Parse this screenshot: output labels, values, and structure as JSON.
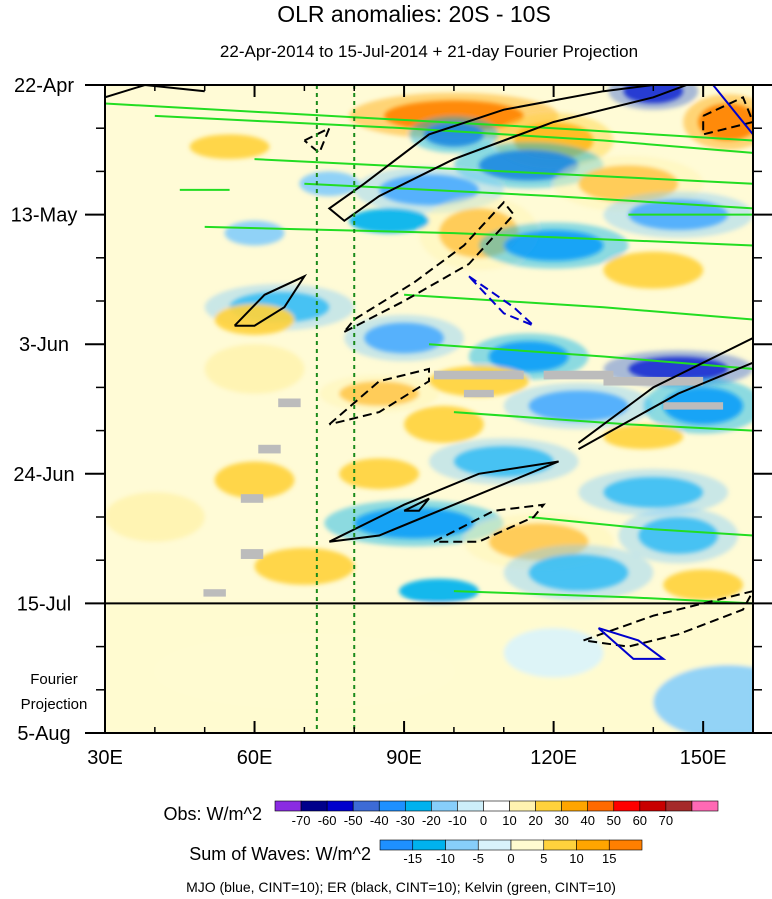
{
  "chart_data": {
    "type": "heatmap",
    "title": "OLR anomalies: 20S - 10S",
    "subtitle": "22-Apr-2014 to 15-Jul-2014 + 21-day Fourier Projection",
    "x_axis": {
      "ticks": [
        30,
        60,
        90,
        120,
        150
      ],
      "tick_labels": [
        "30E",
        "60E",
        "90E",
        "120E",
        "150E"
      ],
      "range": [
        30,
        160
      ]
    },
    "y_axis": {
      "ticks": [
        0,
        21,
        42,
        63,
        84,
        105
      ],
      "tick_labels": [
        "22-Apr",
        "13-May",
        "3-Jun",
        "24-Jun",
        "15-Jul",
        "5-Aug"
      ],
      "range_days": [
        0,
        105
      ],
      "direction": "time increases downward"
    },
    "observation_end_day": 84,
    "projection_label_line1": "Fourier",
    "projection_label_line2": "Projection",
    "reference_longitudes": [
      72.5,
      80
    ],
    "obs_colorbar": {
      "label": "Obs: W/m^2",
      "levels": [
        -70,
        -60,
        -50,
        -40,
        -30,
        -20,
        -10,
        0,
        10,
        20,
        30,
        40,
        50,
        60,
        70
      ],
      "colors": [
        "#8a2be2",
        "#00008b",
        "#0000cd",
        "#3d6bd6",
        "#1e90ff",
        "#00b2ee",
        "#87cefa",
        "#cdeef9",
        "#ffffff",
        "#fff3b0",
        "#ffd23c",
        "#ffa500",
        "#ff6a00",
        "#ff0000",
        "#c80000",
        "#a52a2a",
        "#ff69b4"
      ]
    },
    "waves_colorbar": {
      "label": "Sum of Waves: W/m^2",
      "levels": [
        -15,
        -10,
        -5,
        0,
        5,
        10,
        15
      ],
      "colors": [
        "#1e90ff",
        "#00b2ee",
        "#87cefa",
        "#d9f3fb",
        "#fffbd0",
        "#ffd23c",
        "#ffa500",
        "#ff7f00"
      ]
    },
    "contours": {
      "mjo": {
        "name": "MJO",
        "color": "#0000cd",
        "cint": 10
      },
      "er": {
        "name": "ER",
        "color": "#000000",
        "cint": 10
      },
      "kelvin": {
        "name": "Kelvin",
        "color": "#22dd22",
        "cint": 10
      }
    },
    "legend_text": "MJO (blue, CINT=10); ER (black, CINT=10); Kelvin (green, CINT=10)",
    "anomaly_blobs": [
      {
        "lon": 100,
        "day": 5,
        "rx": 14,
        "ry": 2.5,
        "v": 45
      },
      {
        "lon": 140,
        "day": 1,
        "rx": 6,
        "ry": 2,
        "v": -60
      },
      {
        "lon": 155,
        "day": 6,
        "rx": 6,
        "ry": 3,
        "v": 45
      },
      {
        "lon": 120,
        "day": 9,
        "rx": 8,
        "ry": 3,
        "v": 35
      },
      {
        "lon": 100,
        "day": 8,
        "rx": 6,
        "ry": 2,
        "v": -45
      },
      {
        "lon": 115,
        "day": 13,
        "rx": 10,
        "ry": 2.5,
        "v": -45
      },
      {
        "lon": 95,
        "day": 17,
        "rx": 10,
        "ry": 2.5,
        "v": -35
      },
      {
        "lon": 135,
        "day": 16,
        "rx": 10,
        "ry": 3,
        "v": 30
      },
      {
        "lon": 55,
        "day": 10,
        "rx": 8,
        "ry": 2,
        "v": 25
      },
      {
        "lon": 75,
        "day": 16,
        "rx": 6,
        "ry": 2,
        "v": -20
      },
      {
        "lon": 145,
        "day": 21,
        "rx": 10,
        "ry": 2.5,
        "v": -35
      },
      {
        "lon": 105,
        "day": 24,
        "rx": 8,
        "ry": 4,
        "v": 30
      },
      {
        "lon": 120,
        "day": 26,
        "rx": 10,
        "ry": 2.5,
        "v": -40
      },
      {
        "lon": 87,
        "day": 22,
        "rx": 8,
        "ry": 2,
        "v": -25
      },
      {
        "lon": 60,
        "day": 24,
        "rx": 6,
        "ry": 2,
        "v": -20
      },
      {
        "lon": 140,
        "day": 30,
        "rx": 10,
        "ry": 3,
        "v": 20
      },
      {
        "lon": 65,
        "day": 36,
        "rx": 10,
        "ry": 2.5,
        "v": -30
      },
      {
        "lon": 60,
        "day": 38,
        "rx": 8,
        "ry": 2.5,
        "v": 25
      },
      {
        "lon": 90,
        "day": 41,
        "rx": 8,
        "ry": 2.5,
        "v": -35
      },
      {
        "lon": 115,
        "day": 44,
        "rx": 8,
        "ry": 2.5,
        "v": -40
      },
      {
        "lon": 145,
        "day": 46,
        "rx": 10,
        "ry": 2,
        "v": -60
      },
      {
        "lon": 105,
        "day": 48,
        "rx": 10,
        "ry": 2.5,
        "v": 25
      },
      {
        "lon": 60,
        "day": 46,
        "rx": 10,
        "ry": 4,
        "v": 15
      },
      {
        "lon": 85,
        "day": 50,
        "rx": 8,
        "ry": 2,
        "v": 30
      },
      {
        "lon": 125,
        "day": 52,
        "rx": 10,
        "ry": 2.5,
        "v": -35
      },
      {
        "lon": 150,
        "day": 52,
        "rx": 8,
        "ry": 3,
        "v": -40
      },
      {
        "lon": 98,
        "day": 55,
        "rx": 8,
        "ry": 3,
        "v": 20
      },
      {
        "lon": 138,
        "day": 57,
        "rx": 8,
        "ry": 2,
        "v": 25
      },
      {
        "lon": 110,
        "day": 61,
        "rx": 10,
        "ry": 2.5,
        "v": -30
      },
      {
        "lon": 85,
        "day": 63,
        "rx": 8,
        "ry": 2.5,
        "v": 25
      },
      {
        "lon": 60,
        "day": 64,
        "rx": 8,
        "ry": 3,
        "v": 20
      },
      {
        "lon": 140,
        "day": 66,
        "rx": 10,
        "ry": 2.5,
        "v": -30
      },
      {
        "lon": 92,
        "day": 71,
        "rx": 12,
        "ry": 2.5,
        "v": -40
      },
      {
        "lon": 117,
        "day": 74,
        "rx": 10,
        "ry": 3,
        "v": 30
      },
      {
        "lon": 145,
        "day": 73,
        "rx": 8,
        "ry": 3,
        "v": -30
      },
      {
        "lon": 125,
        "day": 79,
        "rx": 10,
        "ry": 3,
        "v": -30
      },
      {
        "lon": 70,
        "day": 78,
        "rx": 10,
        "ry": 3,
        "v": 20
      },
      {
        "lon": 150,
        "day": 81,
        "rx": 8,
        "ry": 2.5,
        "v": 25
      },
      {
        "lon": 40,
        "day": 70,
        "rx": 10,
        "ry": 4,
        "v": 15
      },
      {
        "lon": 97,
        "day": 82,
        "rx": 8,
        "ry": 2,
        "v": -25
      }
    ],
    "projection_fields": [
      {
        "lon": 155,
        "day": 100,
        "rx": 15,
        "ry": 6,
        "v": -8
      },
      {
        "lon": 120,
        "day": 92,
        "rx": 10,
        "ry": 4,
        "v": -4
      },
      {
        "lon": 70,
        "day": 95,
        "rx": 30,
        "ry": 6,
        "v": 3
      }
    ],
    "missing_data": [
      {
        "lon": 105,
        "day": 47,
        "w": 18,
        "h": 1.4
      },
      {
        "lon": 125,
        "day": 47,
        "w": 14,
        "h": 1.4
      },
      {
        "lon": 140,
        "day": 48,
        "w": 20,
        "h": 1.4
      },
      {
        "lon": 148,
        "day": 52,
        "w": 12,
        "h": 1.2
      },
      {
        "lon": 105,
        "day": 50,
        "w": 6,
        "h": 1.2
      },
      {
        "lon": 67,
        "day": 51.5,
        "w": 4.5,
        "h": 1.4
      },
      {
        "lon": 63,
        "day": 59,
        "w": 4.5,
        "h": 1.4
      },
      {
        "lon": 59.5,
        "day": 67,
        "w": 4.5,
        "h": 1.4
      },
      {
        "lon": 59.5,
        "day": 76,
        "w": 4.5,
        "h": 1.6
      },
      {
        "lon": 52,
        "day": 82.3,
        "w": 4.5,
        "h": 1.2
      }
    ],
    "er_contours": [
      {
        "dashed": false,
        "points": [
          [
            30,
            2
          ],
          [
            38,
            0
          ],
          [
            50,
            1
          ]
        ]
      },
      {
        "dashed": false,
        "points": [
          [
            82,
            16
          ],
          [
            95,
            8
          ],
          [
            110,
            4
          ],
          [
            130,
            1
          ],
          [
            150,
            -1
          ],
          [
            140,
            2
          ],
          [
            120,
            6
          ],
          [
            100,
            12
          ],
          [
            85,
            18
          ],
          [
            78,
            22
          ],
          [
            75,
            20
          ],
          [
            82,
            16
          ]
        ]
      },
      {
        "dashed": true,
        "points": [
          [
            70,
            9
          ],
          [
            75,
            7
          ],
          [
            73,
            11
          ],
          [
            70,
            9
          ]
        ]
      },
      {
        "dashed": true,
        "points": [
          [
            150,
            5
          ],
          [
            158,
            2
          ],
          [
            160,
            6
          ],
          [
            150,
            8
          ],
          [
            150,
            5
          ]
        ]
      },
      {
        "dashed": false,
        "points": [
          [
            56,
            39
          ],
          [
            62,
            34
          ],
          [
            70,
            31
          ],
          [
            66,
            36
          ],
          [
            60,
            39
          ],
          [
            56,
            39
          ]
        ]
      },
      {
        "dashed": true,
        "points": [
          [
            78,
            40
          ],
          [
            90,
            35
          ],
          [
            103,
            29
          ],
          [
            112,
            21
          ],
          [
            110,
            19
          ],
          [
            102,
            26
          ],
          [
            92,
            32
          ],
          [
            80,
            38
          ],
          [
            78,
            40
          ]
        ]
      },
      {
        "dashed": true,
        "points": [
          [
            75,
            55
          ],
          [
            85,
            48
          ],
          [
            95,
            46
          ],
          [
            95,
            48
          ],
          [
            85,
            53
          ],
          [
            75,
            55
          ]
        ]
      },
      {
        "dashed": false,
        "points": [
          [
            125,
            58
          ],
          [
            140,
            49
          ],
          [
            160,
            41
          ]
        ]
      },
      {
        "dashed": false,
        "points": [
          [
            125,
            59
          ],
          [
            145,
            50
          ],
          [
            160,
            45
          ]
        ]
      },
      {
        "dashed": false,
        "points": [
          [
            75,
            74
          ],
          [
            90,
            68
          ],
          [
            105,
            63
          ],
          [
            121,
            61
          ],
          [
            118,
            62
          ],
          [
            100,
            68
          ],
          [
            85,
            73
          ],
          [
            75,
            74
          ]
        ]
      },
      {
        "dashed": false,
        "points": [
          [
            90,
            69
          ],
          [
            95,
            67
          ],
          [
            93,
            69
          ],
          [
            90,
            69
          ]
        ]
      },
      {
        "dashed": true,
        "points": [
          [
            96,
            74
          ],
          [
            108,
            69
          ],
          [
            118,
            68
          ],
          [
            116,
            70
          ],
          [
            105,
            74
          ],
          [
            96,
            74
          ]
        ]
      },
      {
        "dashed": true,
        "points": [
          [
            126,
            90
          ],
          [
            140,
            86
          ],
          [
            160,
            82
          ],
          [
            158,
            85
          ],
          [
            145,
            89
          ],
          [
            135,
            91
          ],
          [
            126,
            90
          ]
        ]
      }
    ],
    "mjo_contours": [
      {
        "dashed": true,
        "points": [
          [
            103,
            31
          ],
          [
            112,
            36
          ],
          [
            116,
            39
          ],
          [
            110,
            37
          ],
          [
            103,
            31
          ]
        ]
      },
      {
        "dashed": false,
        "points": [
          [
            129,
            88
          ],
          [
            137,
            90
          ],
          [
            142,
            93
          ],
          [
            136,
            93
          ],
          [
            129,
            88
          ]
        ]
      },
      {
        "dashed": false,
        "points": [
          [
            152,
            0
          ],
          [
            160,
            8
          ]
        ]
      }
    ],
    "kelvin_contours": [
      {
        "points": [
          [
            30,
            3
          ],
          [
            75,
            5
          ],
          [
            120,
            7
          ],
          [
            160,
            9
          ]
        ]
      },
      {
        "points": [
          [
            40,
            5
          ],
          [
            90,
            7
          ],
          [
            130,
            9
          ],
          [
            160,
            11
          ]
        ]
      },
      {
        "points": [
          [
            60,
            12
          ],
          [
            110,
            14
          ],
          [
            160,
            16
          ]
        ]
      },
      {
        "points": [
          [
            70,
            16
          ],
          [
            120,
            18
          ],
          [
            160,
            20
          ]
        ]
      },
      {
        "points": [
          [
            50,
            23
          ],
          [
            100,
            24
          ],
          [
            160,
            26
          ]
        ]
      },
      {
        "points": [
          [
            90,
            34
          ],
          [
            130,
            36
          ],
          [
            160,
            38
          ]
        ]
      },
      {
        "points": [
          [
            95,
            42
          ],
          [
            130,
            44
          ],
          [
            160,
            46
          ]
        ]
      },
      {
        "points": [
          [
            100,
            53
          ],
          [
            135,
            55
          ],
          [
            160,
            56
          ]
        ]
      },
      {
        "points": [
          [
            115,
            70
          ],
          [
            140,
            72
          ],
          [
            160,
            73
          ]
        ]
      },
      {
        "points": [
          [
            100,
            82
          ],
          [
            135,
            83
          ],
          [
            160,
            84
          ]
        ]
      },
      {
        "points": [
          [
            45,
            17
          ],
          [
            55,
            17
          ]
        ]
      },
      {
        "points": [
          [
            135,
            21
          ],
          [
            160,
            21
          ]
        ]
      }
    ]
  }
}
